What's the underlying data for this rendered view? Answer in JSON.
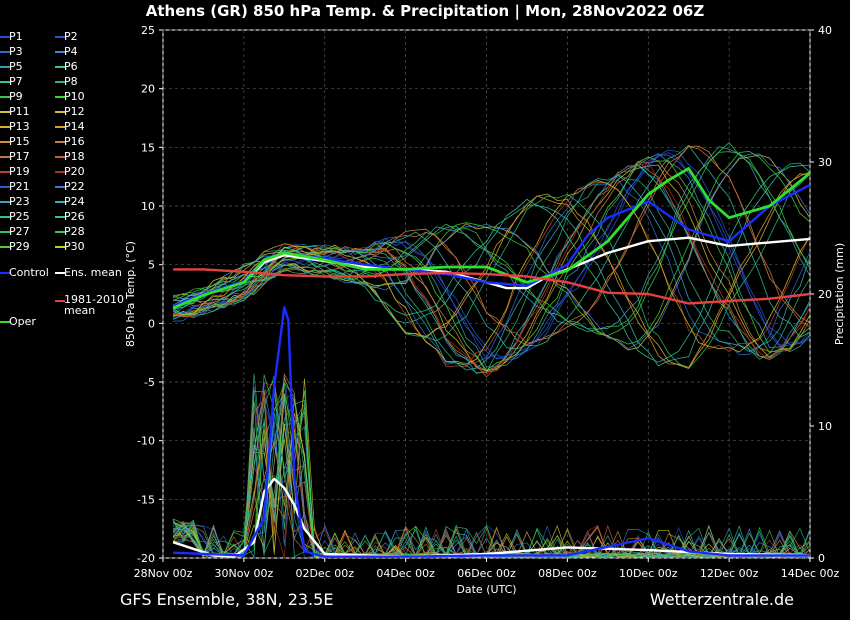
{
  "title": "Athens  (GR)  850 hPa Temp. & Precipitation | Mon, 28Nov2022 06Z",
  "footer": {
    "left": "GFS Ensemble, 38N, 23.5E",
    "right": "Wetterzentrale.de"
  },
  "legend": [
    {
      "label": "P1",
      "color": "#2a4bd8"
    },
    {
      "label": "P2",
      "color": "#1f5bd0"
    },
    {
      "label": "P3",
      "color": "#2a6fd0"
    },
    {
      "label": "P4",
      "color": "#3a8ad8"
    },
    {
      "label": "P5",
      "color": "#30a0b8"
    },
    {
      "label": "P6",
      "color": "#34c0a8"
    },
    {
      "label": "P7",
      "color": "#2fc890"
    },
    {
      "label": "P8",
      "color": "#2bb870"
    },
    {
      "label": "P9",
      "color": "#35c850"
    },
    {
      "label": "P10",
      "color": "#40d030"
    },
    {
      "label": "P11",
      "color": "#c8c830"
    },
    {
      "label": "P12",
      "color": "#d0c040"
    },
    {
      "label": "P13",
      "color": "#d8b030"
    },
    {
      "label": "P14",
      "color": "#d8a030"
    },
    {
      "label": "P15",
      "color": "#d09040"
    },
    {
      "label": "P16",
      "color": "#c88040"
    },
    {
      "label": "P17",
      "color": "#d07040"
    },
    {
      "label": "P18",
      "color": "#c86030"
    },
    {
      "label": "P19",
      "color": "#c04030"
    },
    {
      "label": "P20",
      "color": "#b03020"
    },
    {
      "label": "P21",
      "color": "#2a5ad0"
    },
    {
      "label": "P22",
      "color": "#3a7ad8"
    },
    {
      "label": "P23",
      "color": "#40a0c0"
    },
    {
      "label": "P24",
      "color": "#30b0c0"
    },
    {
      "label": "P25",
      "color": "#30c0a0"
    },
    {
      "label": "P26",
      "color": "#30c890"
    },
    {
      "label": "P27",
      "color": "#28c070"
    },
    {
      "label": "P28",
      "color": "#38c850"
    },
    {
      "label": "P29",
      "color": "#50d030"
    },
    {
      "label": "P30",
      "color": "#c8c820"
    },
    {
      "label": "Control",
      "color": "#1a2cff"
    },
    {
      "label": "Ens. mean",
      "color": "#ffffff"
    },
    {
      "label": "Oper",
      "color": "#30e030"
    },
    {
      "label": "1981-2010 mean",
      "color": "#e84040"
    }
  ],
  "chart_data": {
    "type": "line",
    "title": "Athens  (GR)  850 hPa Temp. & Precipitation | Mon, 28Nov2022 06Z",
    "xlabel": "Date (UTC)",
    "ylabel_left": "850 hPa Temp. (°C)",
    "ylabel_right": "Precipitation (mm)",
    "x_ticks": [
      "28Nov 00z",
      "30Nov 00z",
      "02Dec 00z",
      "04Dec 00z",
      "06Dec 00z",
      "08Dec 00z",
      "10Dec 00z",
      "12Dec 00z",
      "14Dec 00z"
    ],
    "xlim_days": [
      0,
      16
    ],
    "ylim_temp": [
      -20,
      25
    ],
    "ylim_precip": [
      0,
      40
    ],
    "y_ticks_temp": [
      -20,
      -15,
      -10,
      -5,
      0,
      5,
      10,
      15,
      20,
      25
    ],
    "y_ticks_precip": [
      0,
      10,
      20,
      30,
      40
    ],
    "grid": true,
    "series": [
      {
        "name": "Ens. mean",
        "color": "#ffffff",
        "axis": "temp",
        "x": [
          0.25,
          1,
          2,
          2.5,
          3,
          4,
          5,
          6,
          7,
          8,
          8.5,
          9,
          9.5,
          10,
          11,
          12,
          13,
          14,
          15,
          16
        ],
        "y": [
          1.5,
          2.5,
          3.5,
          5.2,
          5.8,
          5.3,
          4.8,
          4.6,
          4.4,
          3.5,
          3.0,
          3.0,
          4.0,
          4.6,
          6.0,
          7.0,
          7.3,
          6.6,
          6.9,
          7.2
        ]
      },
      {
        "name": "Control",
        "color": "#1a2cff",
        "axis": "temp",
        "x": [
          0.25,
          1,
          2,
          2.5,
          3,
          4,
          5,
          6,
          7,
          8,
          9,
          10,
          10.5,
          11,
          12,
          13,
          14,
          15,
          16
        ],
        "y": [
          1.5,
          2.5,
          3.6,
          5.5,
          6.0,
          5.5,
          5.0,
          4.6,
          4.2,
          3.5,
          3.2,
          5.0,
          7.5,
          9.0,
          10.4,
          8.0,
          7.0,
          10.0,
          11.8
        ]
      },
      {
        "name": "Oper",
        "color": "#30e030",
        "axis": "temp",
        "x": [
          0.25,
          1,
          2,
          2.5,
          3,
          4,
          5,
          6,
          7,
          8,
          9,
          10,
          11,
          12,
          12.5,
          13,
          13.5,
          14,
          15,
          16
        ],
        "y": [
          1.3,
          2.4,
          3.5,
          5.4,
          6.0,
          5.4,
          4.6,
          4.6,
          4.8,
          4.8,
          3.5,
          4.5,
          7.0,
          11.0,
          12.2,
          13.2,
          10.5,
          9.0,
          10.0,
          12.8
        ]
      },
      {
        "name": "1981-2010 mean",
        "color": "#e84040",
        "axis": "temp",
        "x": [
          0.25,
          1,
          2,
          3,
          4,
          5,
          6,
          7,
          8,
          9,
          10,
          11,
          12,
          13,
          14,
          15,
          16
        ],
        "y": [
          4.6,
          4.6,
          4.4,
          4.1,
          4.0,
          4.0,
          4.2,
          4.3,
          4.2,
          4.0,
          3.5,
          2.6,
          2.5,
          1.7,
          1.9,
          2.1,
          2.5
        ]
      },
      {
        "name": "Ens. mean precip",
        "color": "#ffffff",
        "axis": "precip",
        "x": [
          0.25,
          0.75,
          1.25,
          1.75,
          2.25,
          2.5,
          2.75,
          3.0,
          3.25,
          3.5,
          4,
          6,
          8,
          10,
          12,
          14,
          16
        ],
        "y": [
          1.2,
          0.7,
          0.2,
          0.1,
          1.2,
          5.0,
          6.0,
          5.3,
          4.0,
          2.2,
          0.3,
          0.1,
          0.3,
          0.8,
          0.6,
          0.3,
          0.2
        ]
      },
      {
        "name": "Control precip",
        "color": "#1a2cff",
        "axis": "precip",
        "x": [
          0.25,
          2.0,
          2.5,
          2.75,
          3.0,
          3.1,
          3.25,
          3.5,
          4,
          6,
          8,
          10,
          12,
          13,
          14,
          16
        ],
        "y": [
          0.4,
          0.2,
          3.0,
          13.0,
          19.0,
          18.0,
          6.0,
          0.5,
          0.1,
          0.1,
          0.2,
          0.2,
          1.5,
          0.5,
          0.2,
          0.2
        ]
      }
    ],
    "members": {
      "colors": [
        "#2a4bd8",
        "#1f5bd0",
        "#2a6fd0",
        "#3a8ad8",
        "#30a0b8",
        "#34c0a8",
        "#2fc890",
        "#2bb870",
        "#35c850",
        "#40d030",
        "#c8c830",
        "#d0c040",
        "#d8b030",
        "#d8a030",
        "#d09040",
        "#c88040",
        "#d07040",
        "#c86030",
        "#c04030",
        "#b03020",
        "#2a5ad0",
        "#3a7ad8",
        "#40a0c0",
        "#30b0c0",
        "#30c0a0",
        "#30c890",
        "#28c070",
        "#38c850",
        "#50d030",
        "#c8c820"
      ],
      "temp_envelope_x": [
        0,
        1,
        2,
        3,
        4,
        5,
        6,
        7,
        8,
        9,
        10,
        11,
        12,
        13,
        14,
        15,
        16
      ],
      "temp_low": [
        0,
        1,
        2,
        4.5,
        4,
        3,
        -1,
        -4,
        -5,
        -3,
        -1,
        -2,
        -4,
        -5,
        -3,
        -4,
        -2
      ],
      "temp_high": [
        2,
        3,
        5,
        6.8,
        6.5,
        6.5,
        8,
        9,
        9,
        11,
        12,
        13,
        15,
        16,
        16,
        15,
        14
      ]
    }
  }
}
